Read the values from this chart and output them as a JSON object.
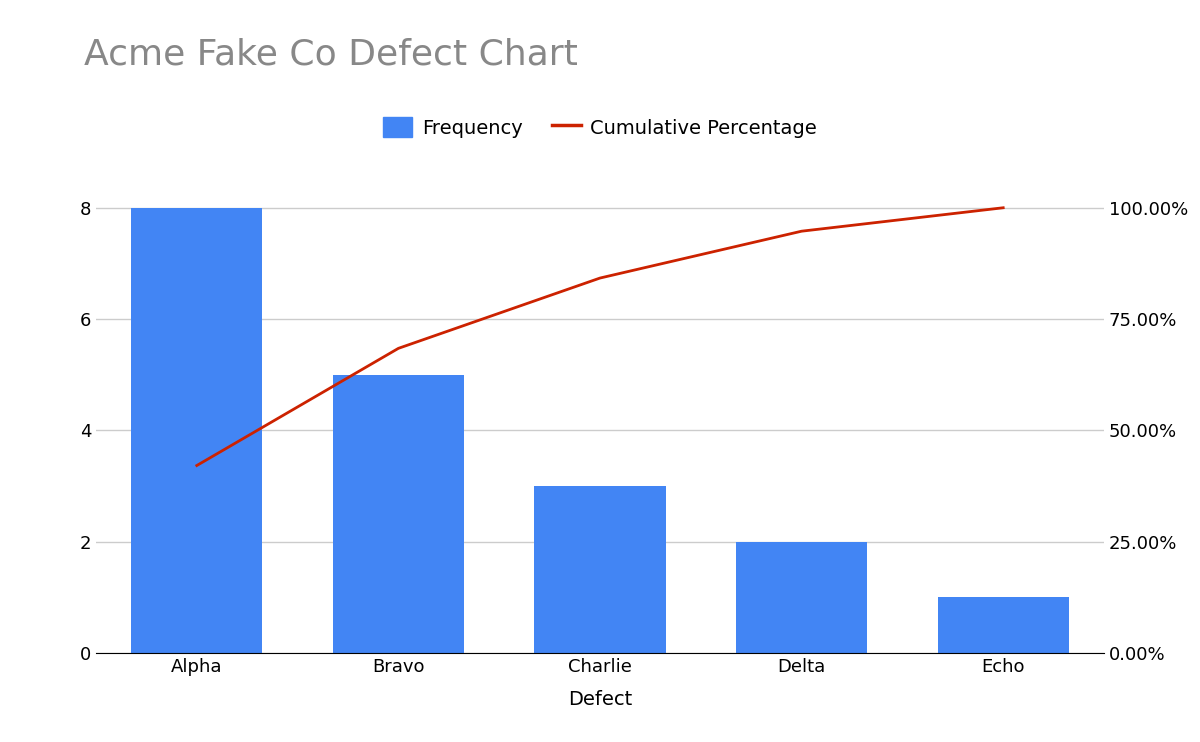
{
  "title": "Acme Fake Co Defect Chart",
  "categories": [
    "Alpha",
    "Bravo",
    "Charlie",
    "Delta",
    "Echo"
  ],
  "frequencies": [
    8,
    5,
    3,
    2,
    1
  ],
  "cumulative_pct": [
    42.105,
    68.421,
    84.211,
    94.737,
    100.0
  ],
  "bar_color": "#4285F4",
  "line_color": "#CC2200",
  "xlabel": "Defect",
  "title_fontsize": 26,
  "title_color": "#888888",
  "axis_label_fontsize": 14,
  "tick_fontsize": 13,
  "legend_fontsize": 14,
  "ylim_left": [
    0,
    8.8
  ],
  "ylim_right": [
    0,
    110
  ],
  "yticks_left": [
    0,
    2,
    4,
    6,
    8
  ],
  "yticks_right": [
    0,
    25,
    50,
    75,
    100
  ],
  "ytick_labels_right": [
    "0.00%",
    "25.00%",
    "50.00%",
    "75.00%",
    "100.00%"
  ],
  "background_color": "#ffffff",
  "grid_color": "#cccccc",
  "line_width": 2.0,
  "bar_width": 0.65
}
